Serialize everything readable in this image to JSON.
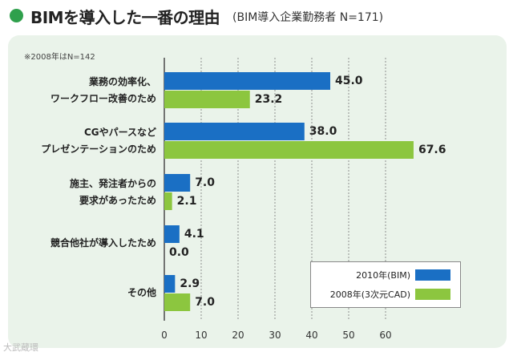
{
  "header": {
    "title": "BIMを導入した一番の理由",
    "subtitle": "(BIM導入企業勤務者 N=171)"
  },
  "note": "※2008年はN=142",
  "watermark": "大武蔵環",
  "chart_data": {
    "type": "bar",
    "orientation": "horizontal",
    "title": "BIMを導入した一番の理由",
    "subtitle": "(BIM導入企業勤務者 N=171)",
    "categories": [
      "業務の効率化、\nワークフロー改善のため",
      "CGやパースなど\nプレゼンテーションのため",
      "施主、発注者からの\n要求があったため",
      "競合他社が導入したため",
      "その他"
    ],
    "series": [
      {
        "name": "2010年(BIM)",
        "color": "#1a6fc4",
        "values": [
          45.0,
          38.0,
          7.0,
          4.1,
          2.9
        ]
      },
      {
        "name": "2008年(3次元CAD)",
        "color": "#8cc63f",
        "values": [
          23.2,
          67.6,
          2.1,
          0.0,
          7.0
        ]
      }
    ],
    "value_labels": [
      [
        "45.0",
        "38.0",
        "7.0",
        "4.1",
        "2.9"
      ],
      [
        "23.2",
        "67.6",
        "2.1",
        "0.0",
        "7.0"
      ]
    ],
    "xlim": [
      0,
      70
    ],
    "xticks": [
      0,
      10,
      20,
      30,
      40,
      50,
      60
    ],
    "xtick_labels": [
      "0",
      "10",
      "20",
      "30",
      "40",
      "50",
      "60"
    ],
    "xlabel": "",
    "ylabel": "",
    "legend": "bottom-right",
    "grid": true
  }
}
